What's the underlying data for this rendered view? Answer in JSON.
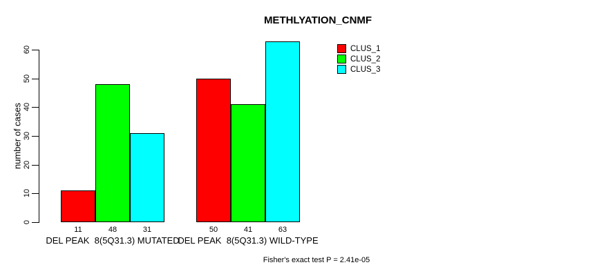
{
  "chart_data": {
    "type": "bar",
    "title": "METHLYATION_CNMF",
    "xlabel": "",
    "ylabel": "number of cases",
    "ylim": [
      0,
      63
    ],
    "yticks": [
      0,
      10,
      20,
      30,
      40,
      50,
      60
    ],
    "grid": false,
    "legend_position": "top-right",
    "bar_value_labels": true,
    "categories": [
      "DEL PEAK  8(5Q31.3) MUTATED",
      "DEL PEAK  8(5Q31.3) WILD-TYPE"
    ],
    "series": [
      {
        "name": "CLUS_1",
        "color": "#FF0000",
        "values": [
          11,
          50
        ]
      },
      {
        "name": "CLUS_2",
        "color": "#00FF00",
        "values": [
          48,
          41
        ]
      },
      {
        "name": "CLUS_3",
        "color": "#00FFFF",
        "values": [
          31,
          63
        ]
      }
    ],
    "annotation": "Fisher's exact test P = 2.41e-05"
  },
  "colors": {
    "axis": "#000000",
    "background": "#FFFFFF"
  }
}
